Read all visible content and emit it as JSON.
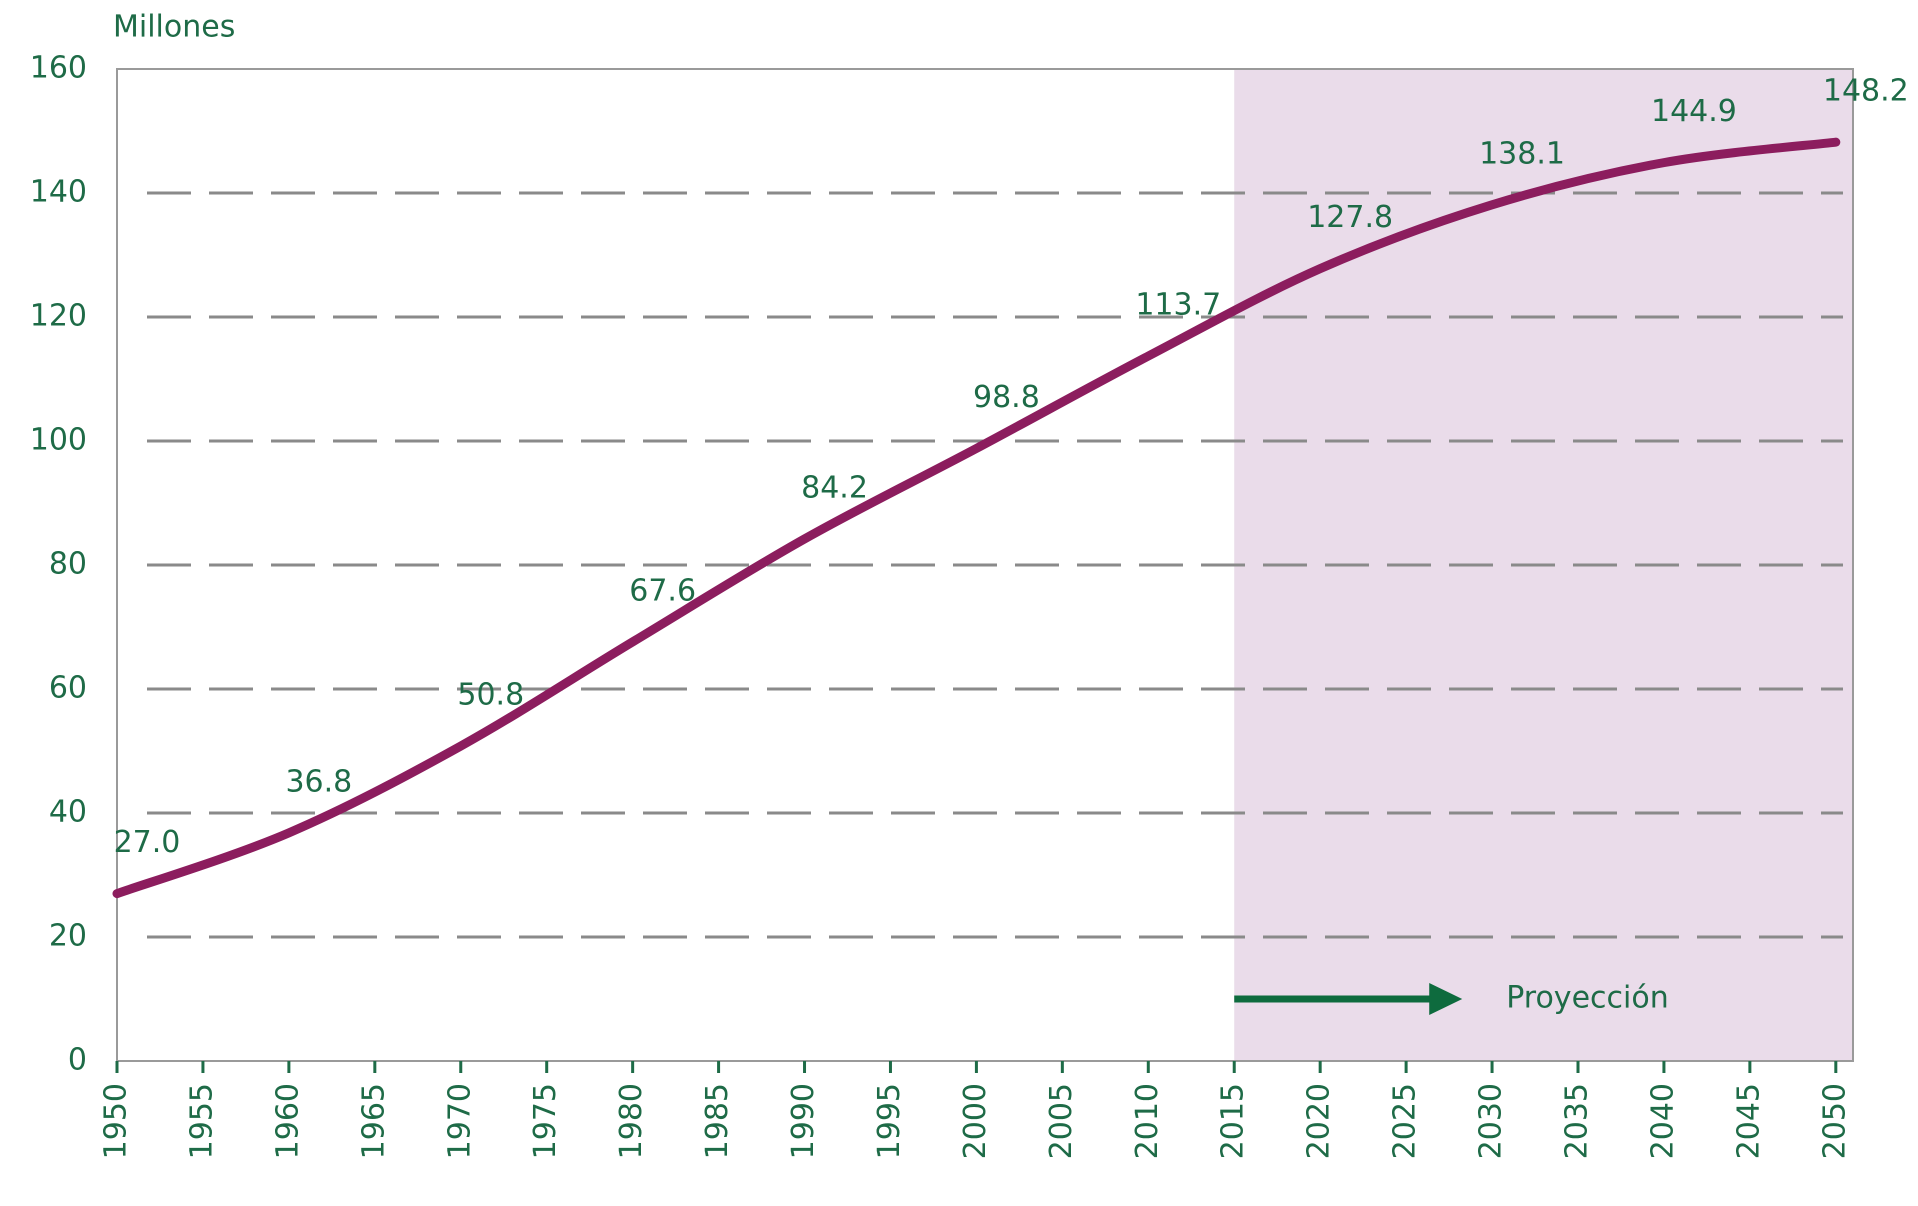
{
  "chart_data": {
    "type": "line",
    "y_axis_label": "Millones",
    "x": [
      1950,
      1960,
      1970,
      1980,
      1990,
      2000,
      2010,
      2020,
      2030,
      2040,
      2050
    ],
    "series": [
      {
        "color": "#8c1d5e",
        "values": [
          27.0,
          36.8,
          50.8,
          67.6,
          84.2,
          98.8,
          113.7,
          127.8,
          138.1,
          144.9,
          148.2
        ],
        "value_labels": [
          "27.0",
          "36.8",
          "50.8",
          "67.6",
          "84.2",
          "98.8",
          "113.7",
          "127.8",
          "138.1",
          "144.9",
          "148.2"
        ]
      }
    ],
    "xlim": [
      1950,
      2051
    ],
    "ylim": [
      0,
      160
    ],
    "xticks": [
      1950,
      1955,
      1960,
      1965,
      1970,
      1975,
      1980,
      1985,
      1990,
      1995,
      2000,
      2005,
      2010,
      2015,
      2020,
      2025,
      2030,
      2035,
      2040,
      2045,
      2050
    ],
    "yticks": [
      0,
      20,
      40,
      60,
      80,
      100,
      120,
      140,
      160
    ],
    "grid": true,
    "projection_start": 2015,
    "projection_label": "Proyección"
  }
}
